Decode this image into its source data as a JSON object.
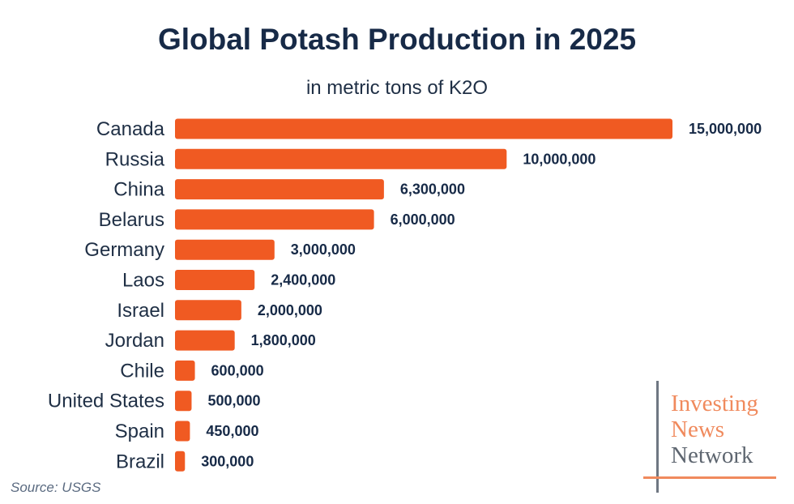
{
  "chart_data": {
    "type": "bar",
    "orientation": "horizontal",
    "title": "Global Potash Production in 2025",
    "subtitle": "in metric tons of K2O",
    "categories": [
      "Canada",
      "Russia",
      "China",
      "Belarus",
      "Germany",
      "Laos",
      "Israel",
      "Jordan",
      "Chile",
      "United States",
      "Spain",
      "Brazil"
    ],
    "values": [
      15000000,
      10000000,
      6300000,
      6000000,
      3000000,
      2400000,
      2000000,
      1800000,
      600000,
      500000,
      450000,
      300000
    ],
    "value_labels": [
      "15,000,000",
      "10,000,000",
      "6,300,000",
      "6,000,000",
      "3,000,000",
      "2,400,000",
      "2,000,000",
      "1,800,000",
      "600,000",
      "500,000",
      "450,000",
      "300,000"
    ],
    "bar_color": "#f05a22",
    "grid": false,
    "xlim": [
      0,
      15000000
    ]
  },
  "source": "Source: USGS",
  "logo": {
    "line1": "Investing",
    "line2": "News",
    "line3": "Network"
  }
}
